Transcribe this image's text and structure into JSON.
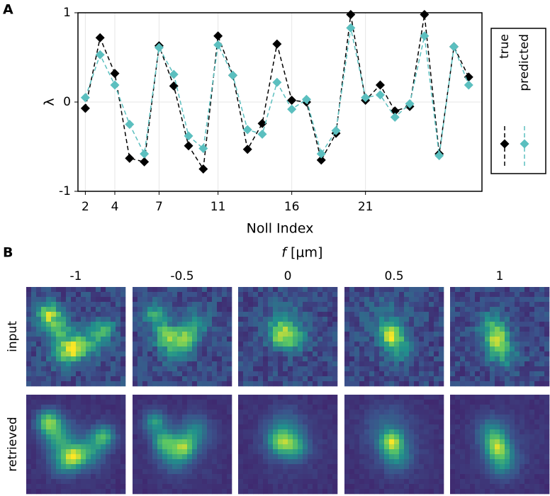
{
  "chart_data": {
    "type": "line",
    "panel_label": "A",
    "xlabel": "Noll Index",
    "ylabel": "λ",
    "x": [
      2,
      3,
      4,
      5,
      6,
      7,
      8,
      9,
      10,
      11,
      12,
      13,
      14,
      15,
      16,
      17,
      18,
      19,
      20,
      21,
      22,
      23,
      24,
      25,
      26,
      27,
      28
    ],
    "series": [
      {
        "name": "true",
        "color": "#000000",
        "values": [
          -0.07,
          0.72,
          0.32,
          -0.63,
          -0.67,
          0.63,
          0.18,
          -0.49,
          -0.75,
          0.74,
          0.3,
          -0.53,
          -0.24,
          0.65,
          0.02,
          0.0,
          -0.65,
          -0.35,
          0.98,
          0.02,
          0.19,
          -0.1,
          -0.05,
          0.98,
          -0.58,
          0.62,
          0.28
        ]
      },
      {
        "name": "predicted",
        "color": "#5bbfbf",
        "values": [
          0.05,
          0.53,
          0.19,
          -0.25,
          -0.58,
          0.61,
          0.31,
          -0.38,
          -0.52,
          0.64,
          0.3,
          -0.31,
          -0.36,
          0.22,
          -0.08,
          0.03,
          -0.58,
          -0.32,
          0.83,
          0.05,
          0.08,
          -0.17,
          -0.02,
          0.74,
          -0.6,
          0.62,
          0.19
        ]
      }
    ],
    "xlim": [
      1.5,
      28.9
    ],
    "ylim": [
      -1,
      1
    ],
    "xticks": [
      2,
      4,
      7,
      11,
      16,
      21
    ],
    "yticks": [
      -1,
      0,
      1
    ],
    "grid": true,
    "legend": "right"
  },
  "panel_b": {
    "panel_label": "B",
    "variable": "f",
    "unit": "[μm]",
    "columns": [
      -1,
      -0.5,
      0,
      0.5,
      1
    ],
    "rows": [
      "input",
      "retrieved"
    ]
  }
}
